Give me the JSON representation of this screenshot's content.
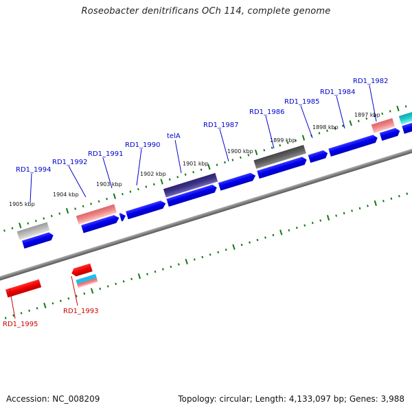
{
  "title": "Roseobacter denitrificans OCh 114, complete genome",
  "footer": {
    "accession": "Accession: NC_008209",
    "summary": "Topology: circular; Length: 4,133,097 bp; Genes: 3,988"
  },
  "colors": {
    "label_forward": "#0000cc",
    "label_reverse": "#cc0000",
    "gene_blue": "#0000ee",
    "gene_red": "#ee0000",
    "gene_pink": "#ee7777",
    "gene_gray": "#aaaaaa",
    "gene_dark": "#555555",
    "gene_navy": "#3a2f80",
    "gene_cyan": "#22cccc",
    "backbone": "#888888",
    "scale": "#117711"
  },
  "scale_labels": [
    "1905 kbp",
    "1904 kbp",
    "1903 kbp",
    "1902 kbp",
    "1901 kbp",
    "1900 kbp",
    "1899 kbp",
    "1898 kbp",
    "1897 kbp"
  ],
  "gene_labels": [
    {
      "text": "RD1_1994",
      "strand": "forward"
    },
    {
      "text": "RD1_1992",
      "strand": "forward"
    },
    {
      "text": "RD1_1991",
      "strand": "forward"
    },
    {
      "text": "RD1_1990",
      "strand": "forward"
    },
    {
      "text": "telA",
      "strand": "forward"
    },
    {
      "text": "RD1_1987",
      "strand": "forward"
    },
    {
      "text": "RD1_1986",
      "strand": "forward"
    },
    {
      "text": "RD1_1985",
      "strand": "forward"
    },
    {
      "text": "RD1_1984",
      "strand": "forward"
    },
    {
      "text": "RD1_1982",
      "strand": "forward"
    },
    {
      "text": "RD1_1995",
      "strand": "reverse"
    },
    {
      "text": "RD1_1993",
      "strand": "reverse"
    }
  ]
}
